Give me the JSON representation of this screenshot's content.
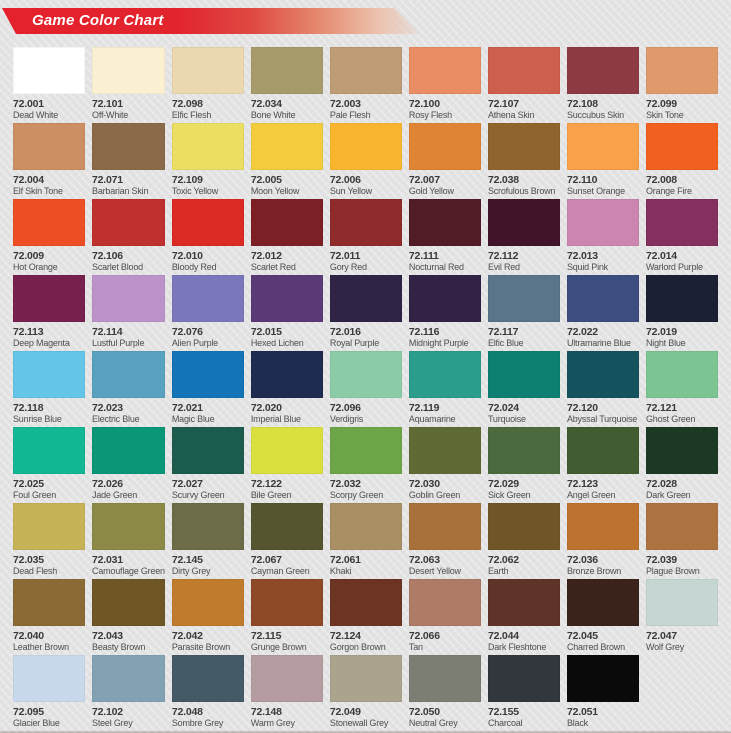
{
  "header": {
    "title": "Game Color Chart",
    "banner_color_start": "#e4212c",
    "banner_color_end": "#ecc2ae"
  },
  "page_background": "#e3e3e4",
  "grid": {
    "columns": 9
  },
  "swatches": [
    {
      "code": "72.001",
      "name": "Dead White",
      "color": "#ffffff"
    },
    {
      "code": "72.101",
      "name": "Off-White",
      "color": "#fbf1d2"
    },
    {
      "code": "72.098",
      "name": "Elfic Flesh",
      "color": "#ebd8af"
    },
    {
      "code": "72.034",
      "name": "Bone White",
      "color": "#a89b6b"
    },
    {
      "code": "72.003",
      "name": "Pale Flesh",
      "color": "#be9c75"
    },
    {
      "code": "72.100",
      "name": "Rosy Flesh",
      "color": "#e98e64"
    },
    {
      "code": "72.107",
      "name": "Athena Skin",
      "color": "#ce5f4d"
    },
    {
      "code": "72.108",
      "name": "Succubus Skin",
      "color": "#8e3a44"
    },
    {
      "code": "72.099",
      "name": "Skin Tone",
      "color": "#de9a6a"
    },
    {
      "code": "72.004",
      "name": "Elf Skin Tone",
      "color": "#cc8f63"
    },
    {
      "code": "72.071",
      "name": "Barbarian Skin",
      "color": "#8a6a49"
    },
    {
      "code": "72.109",
      "name": "Toxic Yellow",
      "color": "#eadf63"
    },
    {
      "code": "72.005",
      "name": "Moon Yellow",
      "color": "#f2cc3c"
    },
    {
      "code": "72.006",
      "name": "Sun Yellow",
      "color": "#f9b52e"
    },
    {
      "code": "72.007",
      "name": "Gold Yellow",
      "color": "#de8434"
    },
    {
      "code": "72.038",
      "name": "Scrofulous Brown",
      "color": "#90652d"
    },
    {
      "code": "72.110",
      "name": "Sunset Orange",
      "color": "#f9a04a"
    },
    {
      "code": "72.008",
      "name": "Orange Fire",
      "color": "#f1601f"
    },
    {
      "code": "72.009",
      "name": "Hot Orange",
      "color": "#ee4e23"
    },
    {
      "code": "72.106",
      "name": "Scarlet Blood",
      "color": "#bf312e"
    },
    {
      "code": "72.010",
      "name": "Bloody Red",
      "color": "#dc2a25"
    },
    {
      "code": "72.012",
      "name": "Scarlet Red",
      "color": "#7c2026"
    },
    {
      "code": "72.011",
      "name": "Gory Red",
      "color": "#8e2b2b"
    },
    {
      "code": "72.111",
      "name": "Nocturnal Red",
      "color": "#521c26"
    },
    {
      "code": "72.112",
      "name": "Evil Red",
      "color": "#411429"
    },
    {
      "code": "72.013",
      "name": "Squid Pink",
      "color": "#cb86b0"
    },
    {
      "code": "72.014",
      "name": "Warlord Purple",
      "color": "#84305e"
    },
    {
      "code": "72.113",
      "name": "Deep Magenta",
      "color": "#78204e"
    },
    {
      "code": "72.114",
      "name": "Lustful Purple",
      "color": "#bc93c8"
    },
    {
      "code": "72.076",
      "name": "Alien Purple",
      "color": "#7b77bc"
    },
    {
      "code": "72.015",
      "name": "Hexed Lichen",
      "color": "#5c3a78"
    },
    {
      "code": "72.016",
      "name": "Royal Purple",
      "color": "#2f2346"
    },
    {
      "code": "72.116",
      "name": "Midnight Purple",
      "color": "#322245"
    },
    {
      "code": "72.117",
      "name": "Elfic Blue",
      "color": "#5a7489"
    },
    {
      "code": "72.022",
      "name": "Ultramarine Blue",
      "color": "#3c4e7f"
    },
    {
      "code": "72.019",
      "name": "Night Blue",
      "color": "#1b2034"
    },
    {
      "code": "72.118",
      "name": "Sunrise Blue",
      "color": "#64c5e8"
    },
    {
      "code": "72.023",
      "name": "Electric Blue",
      "color": "#58a1bf"
    },
    {
      "code": "72.021",
      "name": "Magic Blue",
      "color": "#1474b6"
    },
    {
      "code": "72.020",
      "name": "Imperial Blue",
      "color": "#1f2b4f"
    },
    {
      "code": "72.096",
      "name": "Verdigris",
      "color": "#8ccba8"
    },
    {
      "code": "72.119",
      "name": "Aquamarine",
      "color": "#2a9d8c"
    },
    {
      "code": "72.024",
      "name": "Turquoise",
      "color": "#0e8073"
    },
    {
      "code": "72.120",
      "name": "Abyssal Turquoise",
      "color": "#15525d"
    },
    {
      "code": "72.121",
      "name": "Ghost Green",
      "color": "#7ec492"
    },
    {
      "code": "72.025",
      "name": "Foul Green",
      "color": "#12b893"
    },
    {
      "code": "72.026",
      "name": "Jade Green",
      "color": "#0a9778"
    },
    {
      "code": "72.027",
      "name": "Scurvy Green",
      "color": "#1b5c4e"
    },
    {
      "code": "72.122",
      "name": "Bile Green",
      "color": "#d9e03d"
    },
    {
      "code": "72.032",
      "name": "Scorpy Green",
      "color": "#6da648"
    },
    {
      "code": "72.030",
      "name": "Goblin Green",
      "color": "#5e6b34"
    },
    {
      "code": "72.029",
      "name": "Sick Green",
      "color": "#4b6b3e"
    },
    {
      "code": "72.123",
      "name": "Angel Green",
      "color": "#405c30"
    },
    {
      "code": "72.028",
      "name": "Dark Green",
      "color": "#1c3a23"
    },
    {
      "code": "72.035",
      "name": "Dead Flesh",
      "color": "#c7b357"
    },
    {
      "code": "72.031",
      "name": "Camouflage Green",
      "color": "#8d8a48"
    },
    {
      "code": "72.145",
      "name": "Dirty Grey",
      "color": "#6d6c48"
    },
    {
      "code": "72.067",
      "name": "Cayman Green",
      "color": "#555530"
    },
    {
      "code": "72.061",
      "name": "Khaki",
      "color": "#a98f64"
    },
    {
      "code": "72.063",
      "name": "Desert Yellow",
      "color": "#a8713b"
    },
    {
      "code": "72.062",
      "name": "Earth",
      "color": "#705528"
    },
    {
      "code": "72.036",
      "name": "Bronze Brown",
      "color": "#be7230"
    },
    {
      "code": "72.039",
      "name": "Plague Brown",
      "color": "#ac7340"
    },
    {
      "code": "72.040",
      "name": "Leather Brown",
      "color": "#8a6b36"
    },
    {
      "code": "72.043",
      "name": "Beasty Brown",
      "color": "#6e5725"
    },
    {
      "code": "72.042",
      "name": "Parasite Brown",
      "color": "#c07b2d"
    },
    {
      "code": "72.115",
      "name": "Grunge Brown",
      "color": "#8e4a26"
    },
    {
      "code": "72.124",
      "name": "Gorgon Brown",
      "color": "#6e3423"
    },
    {
      "code": "72.066",
      "name": "Tan",
      "color": "#ae7b67"
    },
    {
      "code": "72.044",
      "name": "Dark Fleshtone",
      "color": "#603328"
    },
    {
      "code": "72.045",
      "name": "Charred Brown",
      "color": "#3b231c"
    },
    {
      "code": "72.047",
      "name": "Wolf Grey",
      "color": "#c6d6d2"
    },
    {
      "code": "72.095",
      "name": "Glacier Blue",
      "color": "#c9d9ec"
    },
    {
      "code": "72.102",
      "name": "Steel Grey",
      "color": "#82a2b4"
    },
    {
      "code": "72.048",
      "name": "Sombre Grey",
      "color": "#455a67"
    },
    {
      "code": "72.148",
      "name": "Warm Grey",
      "color": "#b59ca1"
    },
    {
      "code": "72.049",
      "name": "Stonewall Grey",
      "color": "#aba48d"
    },
    {
      "code": "72.050",
      "name": "Neutral Grey",
      "color": "#7c7e73"
    },
    {
      "code": "72.155",
      "name": "Charcoal",
      "color": "#32373e"
    },
    {
      "code": "72.051",
      "name": "Black",
      "color": "#0a0a0b"
    }
  ]
}
